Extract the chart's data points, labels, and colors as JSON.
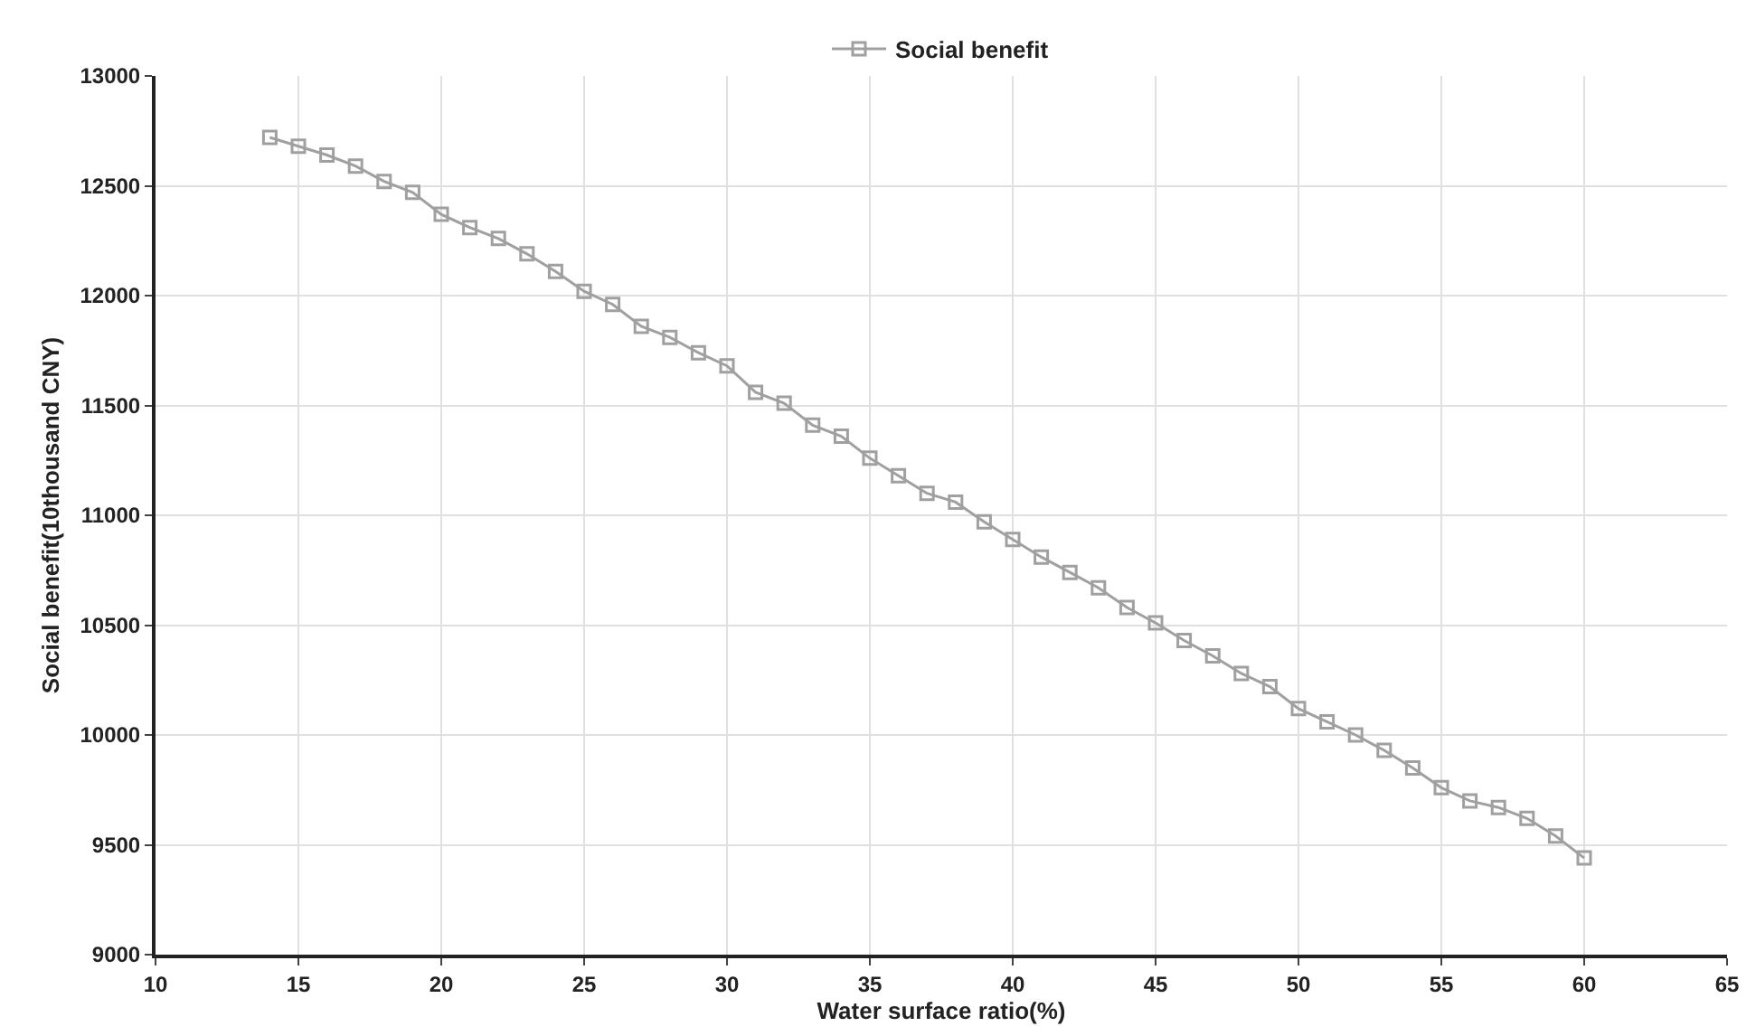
{
  "chart_data": {
    "type": "line",
    "xlabel": "Water surface ratio(%)",
    "ylabel": "Social benefit(10thousand CNY)",
    "x": [
      14,
      15,
      16,
      17,
      18,
      19,
      20,
      21,
      22,
      23,
      24,
      25,
      26,
      27,
      28,
      29,
      30,
      31,
      32,
      33,
      34,
      35,
      36,
      37,
      38,
      39,
      40,
      41,
      42,
      43,
      44,
      45,
      46,
      47,
      48,
      49,
      50,
      51,
      52,
      53,
      54,
      55,
      56,
      57,
      58,
      59,
      60
    ],
    "series": [
      {
        "name": "Social benefit",
        "color": "#a0a0a0",
        "values": [
          12720,
          12680,
          12640,
          12590,
          12520,
          12470,
          12370,
          12310,
          12260,
          12190,
          12110,
          12020,
          11960,
          11860,
          11810,
          11740,
          11680,
          11560,
          11510,
          11410,
          11360,
          11260,
          11180,
          11100,
          11060,
          10970,
          10890,
          10810,
          10740,
          10670,
          10580,
          10510,
          10430,
          10360,
          10280,
          10220,
          10120,
          10060,
          10000,
          9930,
          9850,
          9760,
          9700,
          9670,
          9620,
          9540,
          9440
        ]
      }
    ],
    "xlim": [
      10,
      65
    ],
    "xticks": [
      10,
      15,
      20,
      25,
      30,
      35,
      40,
      45,
      50,
      55,
      60,
      65
    ],
    "ylim": [
      9000,
      13000
    ],
    "yticks": [
      9000,
      9500,
      10000,
      10500,
      11000,
      11500,
      12000,
      12500,
      13000
    ],
    "grid": true,
    "legend": "top",
    "marker": "square",
    "line_style": "solid"
  }
}
